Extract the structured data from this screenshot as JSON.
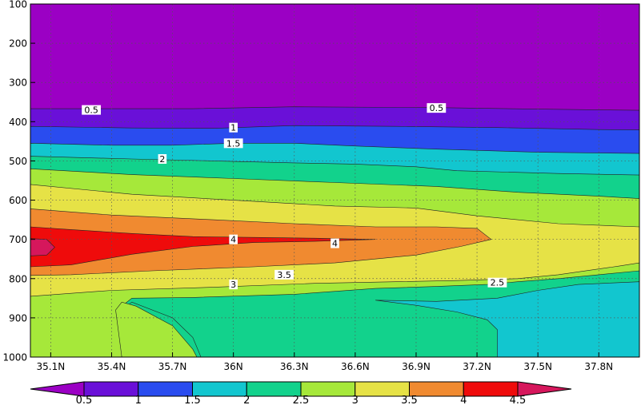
{
  "chart_data": {
    "type": "contour",
    "title": "",
    "xlabel": "",
    "ylabel": "",
    "x_ticks": [
      "35.1N",
      "35.4N",
      "35.7N",
      "36N",
      "36.3N",
      "36.6N",
      "36.9N",
      "37.2N",
      "37.5N",
      "37.8N"
    ],
    "x_tick_values": [
      35.1,
      35.4,
      35.7,
      36.0,
      36.3,
      36.6,
      36.9,
      37.2,
      37.5,
      37.8
    ],
    "xlim": [
      35.0,
      38.0
    ],
    "y_ticks": [
      "100",
      "200",
      "300",
      "400",
      "500",
      "600",
      "700",
      "800",
      "900",
      "1000"
    ],
    "y_tick_values": [
      100,
      200,
      300,
      400,
      500,
      600,
      700,
      800,
      900,
      1000
    ],
    "ylim": [
      100,
      1000
    ],
    "y_inverted": true,
    "grid": true,
    "contour_levels": [
      0.5,
      1,
      1.5,
      2,
      2.5,
      3,
      3.5,
      4,
      4.5
    ],
    "colorbar": {
      "labels": [
        "0.5",
        "1",
        "1.5",
        "2",
        "2.5",
        "3",
        "3.5",
        "4",
        "4.5"
      ],
      "colors": [
        "#9b00c4",
        "#6a10d8",
        "#2a4cef",
        "#12c6cf",
        "#12d28c",
        "#a6e83a",
        "#e6e246",
        "#f08a30",
        "#ef0b0b",
        "#d6175c"
      ],
      "placement": "bottom"
    },
    "contour_labels": [
      {
        "text": "0.5",
        "x": 35.3,
        "y": 370
      },
      {
        "text": "0.5",
        "x": 37.0,
        "y": 365
      },
      {
        "text": "1",
        "x": 36.0,
        "y": 415
      },
      {
        "text": "1.5",
        "x": 36.0,
        "y": 455
      },
      {
        "text": "2",
        "x": 35.65,
        "y": 495
      },
      {
        "text": "4",
        "x": 36.0,
        "y": 700
      },
      {
        "text": "4",
        "x": 36.5,
        "y": 710
      },
      {
        "text": "3.5",
        "x": 36.25,
        "y": 790
      },
      {
        "text": "3",
        "x": 36.0,
        "y": 815
      },
      {
        "text": "2.5",
        "x": 37.3,
        "y": 810
      }
    ],
    "regions": [
      {
        "fill": "#9b00c4",
        "points": [
          [
            35,
            100
          ],
          [
            38,
            100
          ],
          [
            38,
            1000
          ],
          [
            35,
            1000
          ]
        ]
      },
      {
        "fill": "#6a10d8",
        "points": [
          [
            35,
            367
          ],
          [
            35.8,
            367
          ],
          [
            36.3,
            362
          ],
          [
            37,
            364
          ],
          [
            37.5,
            368
          ],
          [
            38,
            371
          ],
          [
            38,
            1000
          ],
          [
            35,
            1000
          ]
        ]
      },
      {
        "fill": "#2a4cef",
        "points": [
          [
            35,
            412
          ],
          [
            35.5,
            416
          ],
          [
            35.9,
            417
          ],
          [
            36.3,
            410
          ],
          [
            36.8,
            412
          ],
          [
            37.3,
            415
          ],
          [
            37.8,
            420
          ],
          [
            38,
            421
          ],
          [
            38,
            1000
          ],
          [
            35,
            1000
          ]
        ]
      },
      {
        "fill": "#12c6cf",
        "points": [
          [
            35,
            455
          ],
          [
            35.4,
            460
          ],
          [
            35.7,
            460
          ],
          [
            36.0,
            455
          ],
          [
            36.3,
            455
          ],
          [
            36.6,
            462
          ],
          [
            37.0,
            470
          ],
          [
            37.5,
            478
          ],
          [
            38,
            481
          ],
          [
            38,
            1000
          ],
          [
            35,
            1000
          ]
        ]
      },
      {
        "fill": "#12d28c",
        "points": [
          [
            35,
            488
          ],
          [
            35.5,
            495
          ],
          [
            35.9,
            500
          ],
          [
            36.3,
            505
          ],
          [
            36.6,
            508
          ],
          [
            36.9,
            515
          ],
          [
            37.1,
            525
          ],
          [
            37.6,
            532
          ],
          [
            38,
            536
          ],
          [
            38,
            1000
          ],
          [
            35,
            1000
          ]
        ]
      },
      {
        "fill": "#a6e83a",
        "points": [
          [
            35,
            520
          ],
          [
            35.5,
            535
          ],
          [
            36.0,
            545
          ],
          [
            36.5,
            555
          ],
          [
            37.0,
            565
          ],
          [
            37.4,
            580
          ],
          [
            37.8,
            590
          ],
          [
            38,
            596
          ],
          [
            38,
            1000
          ],
          [
            35,
            1000
          ]
        ]
      },
      {
        "fill": "#e6e246",
        "points": [
          [
            35,
            560
          ],
          [
            35.5,
            585
          ],
          [
            36.0,
            600
          ],
          [
            36.5,
            615
          ],
          [
            36.9,
            620
          ],
          [
            37.2,
            640
          ],
          [
            37.6,
            660
          ],
          [
            38,
            668
          ],
          [
            38,
            1000
          ],
          [
            35,
            1000
          ]
        ]
      },
      {
        "fill": "#f08a30",
        "points": [
          [
            35,
            622
          ],
          [
            35.4,
            638
          ],
          [
            35.9,
            650
          ],
          [
            36.3,
            660
          ],
          [
            36.7,
            668
          ],
          [
            37.0,
            668
          ],
          [
            37.2,
            672
          ],
          [
            37.27,
            700
          ],
          [
            37.12,
            718
          ],
          [
            36.9,
            740
          ],
          [
            36.5,
            760
          ],
          [
            36.1,
            770
          ],
          [
            35.6,
            780
          ],
          [
            35.2,
            790
          ],
          [
            35,
            792
          ]
        ]
      },
      {
        "fill": "#ef0b0b",
        "points": [
          [
            35,
            668
          ],
          [
            35.2,
            675
          ],
          [
            35.5,
            685
          ],
          [
            35.8,
            693
          ],
          [
            36.1,
            695
          ],
          [
            36.4,
            697
          ],
          [
            36.7,
            700
          ],
          [
            36.4,
            705
          ],
          [
            36.1,
            708
          ],
          [
            35.8,
            718
          ],
          [
            35.5,
            738
          ],
          [
            35.2,
            765
          ],
          [
            35,
            770
          ]
        ]
      },
      {
        "fill": "#d6175c",
        "points": [
          [
            35,
            698
          ],
          [
            35.08,
            700
          ],
          [
            35.12,
            720
          ],
          [
            35.08,
            740
          ],
          [
            35,
            742
          ]
        ]
      },
      {
        "fill": "#a6e83a",
        "points": [
          [
            35,
            845
          ],
          [
            35.4,
            830
          ],
          [
            35.9,
            822
          ],
          [
            36.4,
            812
          ],
          [
            36.8,
            808
          ],
          [
            37.1,
            805
          ],
          [
            37.4,
            800
          ],
          [
            37.6,
            790
          ],
          [
            37.9,
            768
          ],
          [
            38,
            760
          ],
          [
            38,
            1000
          ],
          [
            35,
            1000
          ]
        ]
      },
      {
        "fill": "#12d28c",
        "points": [
          [
            35.45,
            1000
          ],
          [
            35.45,
            870
          ],
          [
            35.5,
            850
          ],
          [
            35.8,
            848
          ],
          [
            36.3,
            840
          ],
          [
            36.7,
            825
          ],
          [
            37.0,
            820
          ],
          [
            37.25,
            815
          ],
          [
            37.4,
            808
          ],
          [
            37.6,
            800
          ],
          [
            37.8,
            790
          ],
          [
            38,
            780
          ],
          [
            38,
            1000
          ]
        ]
      },
      {
        "fill": "#12c6cf",
        "points": [
          [
            36.7,
            855
          ],
          [
            37.0,
            858
          ],
          [
            37.3,
            850
          ],
          [
            37.5,
            830
          ],
          [
            37.7,
            815
          ],
          [
            38,
            808
          ],
          [
            38,
            1000
          ],
          [
            37.3,
            1000
          ],
          [
            37.3,
            930
          ],
          [
            37.25,
            905
          ],
          [
            37.1,
            885
          ],
          [
            36.9,
            868
          ]
        ]
      },
      {
        "fill": "#12d28c",
        "points": [
          [
            35.45,
            1000
          ],
          [
            35.45,
            880
          ],
          [
            35.5,
            860
          ],
          [
            35.7,
            900
          ],
          [
            35.8,
            950
          ],
          [
            35.84,
            1000
          ]
        ]
      },
      {
        "fill": "#a6e83a",
        "points": [
          [
            35.45,
            1000
          ],
          [
            35.42,
            880
          ],
          [
            35.45,
            860
          ],
          [
            35.52,
            870
          ],
          [
            35.7,
            920
          ],
          [
            35.8,
            980
          ],
          [
            35.82,
            1000
          ]
        ]
      }
    ]
  }
}
